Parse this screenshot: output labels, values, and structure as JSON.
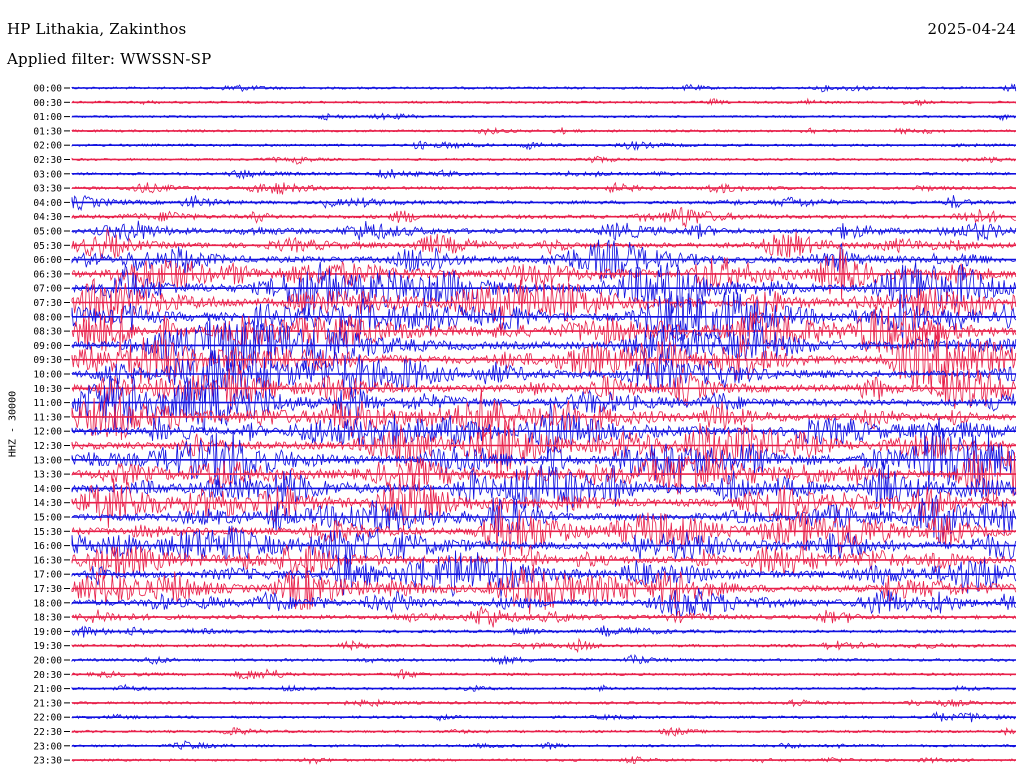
{
  "header": {
    "station": "HP Lithakia, Zakinthos",
    "date": "2025-04-24",
    "filter": "Applied filter: WWSSN-SP"
  },
  "chart_data": {
    "type": "line",
    "ylabel": "HHZ - 30000",
    "time_labels": [
      "00:00",
      "00:30",
      "01:00",
      "01:30",
      "02:00",
      "02:30",
      "03:00",
      "03:30",
      "04:00",
      "04:30",
      "05:00",
      "05:30",
      "06:00",
      "06:30",
      "07:00",
      "07:30",
      "08:00",
      "08:30",
      "09:00",
      "09:30",
      "10:00",
      "10:30",
      "11:00",
      "11:30",
      "12:00",
      "12:30",
      "13:00",
      "13:30",
      "14:00",
      "14:30",
      "15:00",
      "15:30",
      "16:00",
      "16:30",
      "17:00",
      "17:30",
      "18:00",
      "18:30",
      "19:00",
      "19:30",
      "20:00",
      "20:30",
      "21:00",
      "21:30",
      "22:00",
      "22:30",
      "23:00",
      "23:30"
    ],
    "colors": {
      "even": "#1010e0",
      "odd": "#e8204a"
    },
    "amplitude_level": [
      0.12,
      0.12,
      0.1,
      0.12,
      0.14,
      0.12,
      0.18,
      0.22,
      0.28,
      0.35,
      0.45,
      0.55,
      0.7,
      0.8,
      0.9,
      0.95,
      1.0,
      1.0,
      0.95,
      0.9,
      0.85,
      0.85,
      0.85,
      0.85,
      0.85,
      0.9,
      0.95,
      0.95,
      0.95,
      0.9,
      0.85,
      0.85,
      0.8,
      0.8,
      0.85,
      0.85,
      0.7,
      0.35,
      0.22,
      0.2,
      0.18,
      0.16,
      0.14,
      0.16,
      0.16,
      0.14,
      0.14,
      0.12
    ]
  }
}
